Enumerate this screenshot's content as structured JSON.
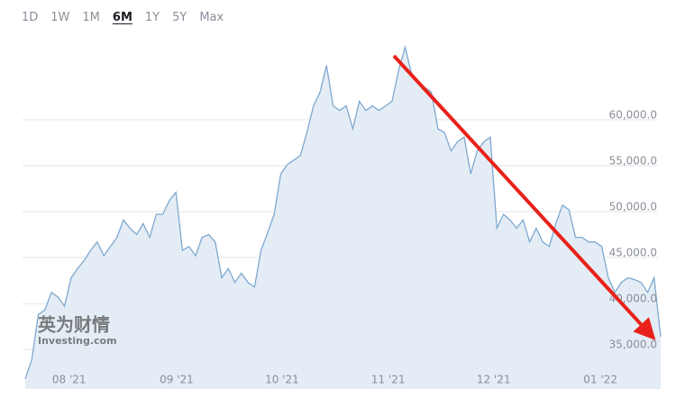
{
  "toolbar": {
    "buttons": [
      "1D",
      "1W",
      "1M",
      "6M",
      "1Y",
      "5Y",
      "Max"
    ],
    "active": 3
  },
  "watermark": {
    "brand": "英为财情",
    "site": "Investing.com"
  },
  "chart_data": {
    "type": "area",
    "color": "#7fa8d0",
    "fill": "#e4edf5",
    "grid": true,
    "values": [
      31800,
      33900,
      38800,
      39300,
      41200,
      40700,
      39700,
      42800,
      43800,
      44700,
      45800,
      46700,
      45200,
      46200,
      47200,
      49100,
      48200,
      47500,
      48700,
      47200,
      49700,
      49700,
      51200,
      52100,
      45800,
      46200,
      45200,
      47200,
      47500,
      46700,
      42800,
      43800,
      42300,
      43300,
      42300,
      41800,
      45800,
      47700,
      49700,
      54100,
      55100,
      55600,
      56100,
      58600,
      61500,
      63000,
      65900,
      61500,
      61000,
      61500,
      59000,
      62000,
      61000,
      61500,
      61000,
      61500,
      62000,
      65400,
      67900,
      64900,
      64000,
      63500,
      63000,
      59000,
      58600,
      56600,
      57600,
      58100,
      54100,
      56600,
      57600,
      58100,
      48200,
      49700,
      49100,
      48200,
      49100,
      46700,
      48200,
      46700,
      46200,
      48700,
      50700,
      50200,
      47200,
      47200,
      46700,
      46700,
      46200,
      42800,
      41200,
      42300,
      42800,
      42600,
      42300,
      41200,
      42800,
      36400
    ],
    "xlim": [
      0,
      97
    ],
    "xticks": [
      {
        "value": 6.7,
        "label": "08 '21"
      },
      {
        "value": 23.1,
        "label": "09 '21"
      },
      {
        "value": 39.2,
        "label": "10 '21"
      },
      {
        "value": 55.4,
        "label": "11 '21"
      },
      {
        "value": 71.5,
        "label": "12 '21"
      },
      {
        "value": 87.8,
        "label": "01 '22"
      }
    ],
    "ylim": [
      30700,
      69100
    ],
    "yticks": [
      {
        "value": 35000,
        "label": "35,000.0"
      },
      {
        "value": 40000,
        "label": "40,000.0"
      },
      {
        "value": 45000,
        "label": "45,000.0"
      },
      {
        "value": 50000,
        "label": "50,000.0"
      },
      {
        "value": 55000,
        "label": "55,000.0"
      },
      {
        "value": 60000,
        "label": "60,000.0"
      }
    ]
  }
}
